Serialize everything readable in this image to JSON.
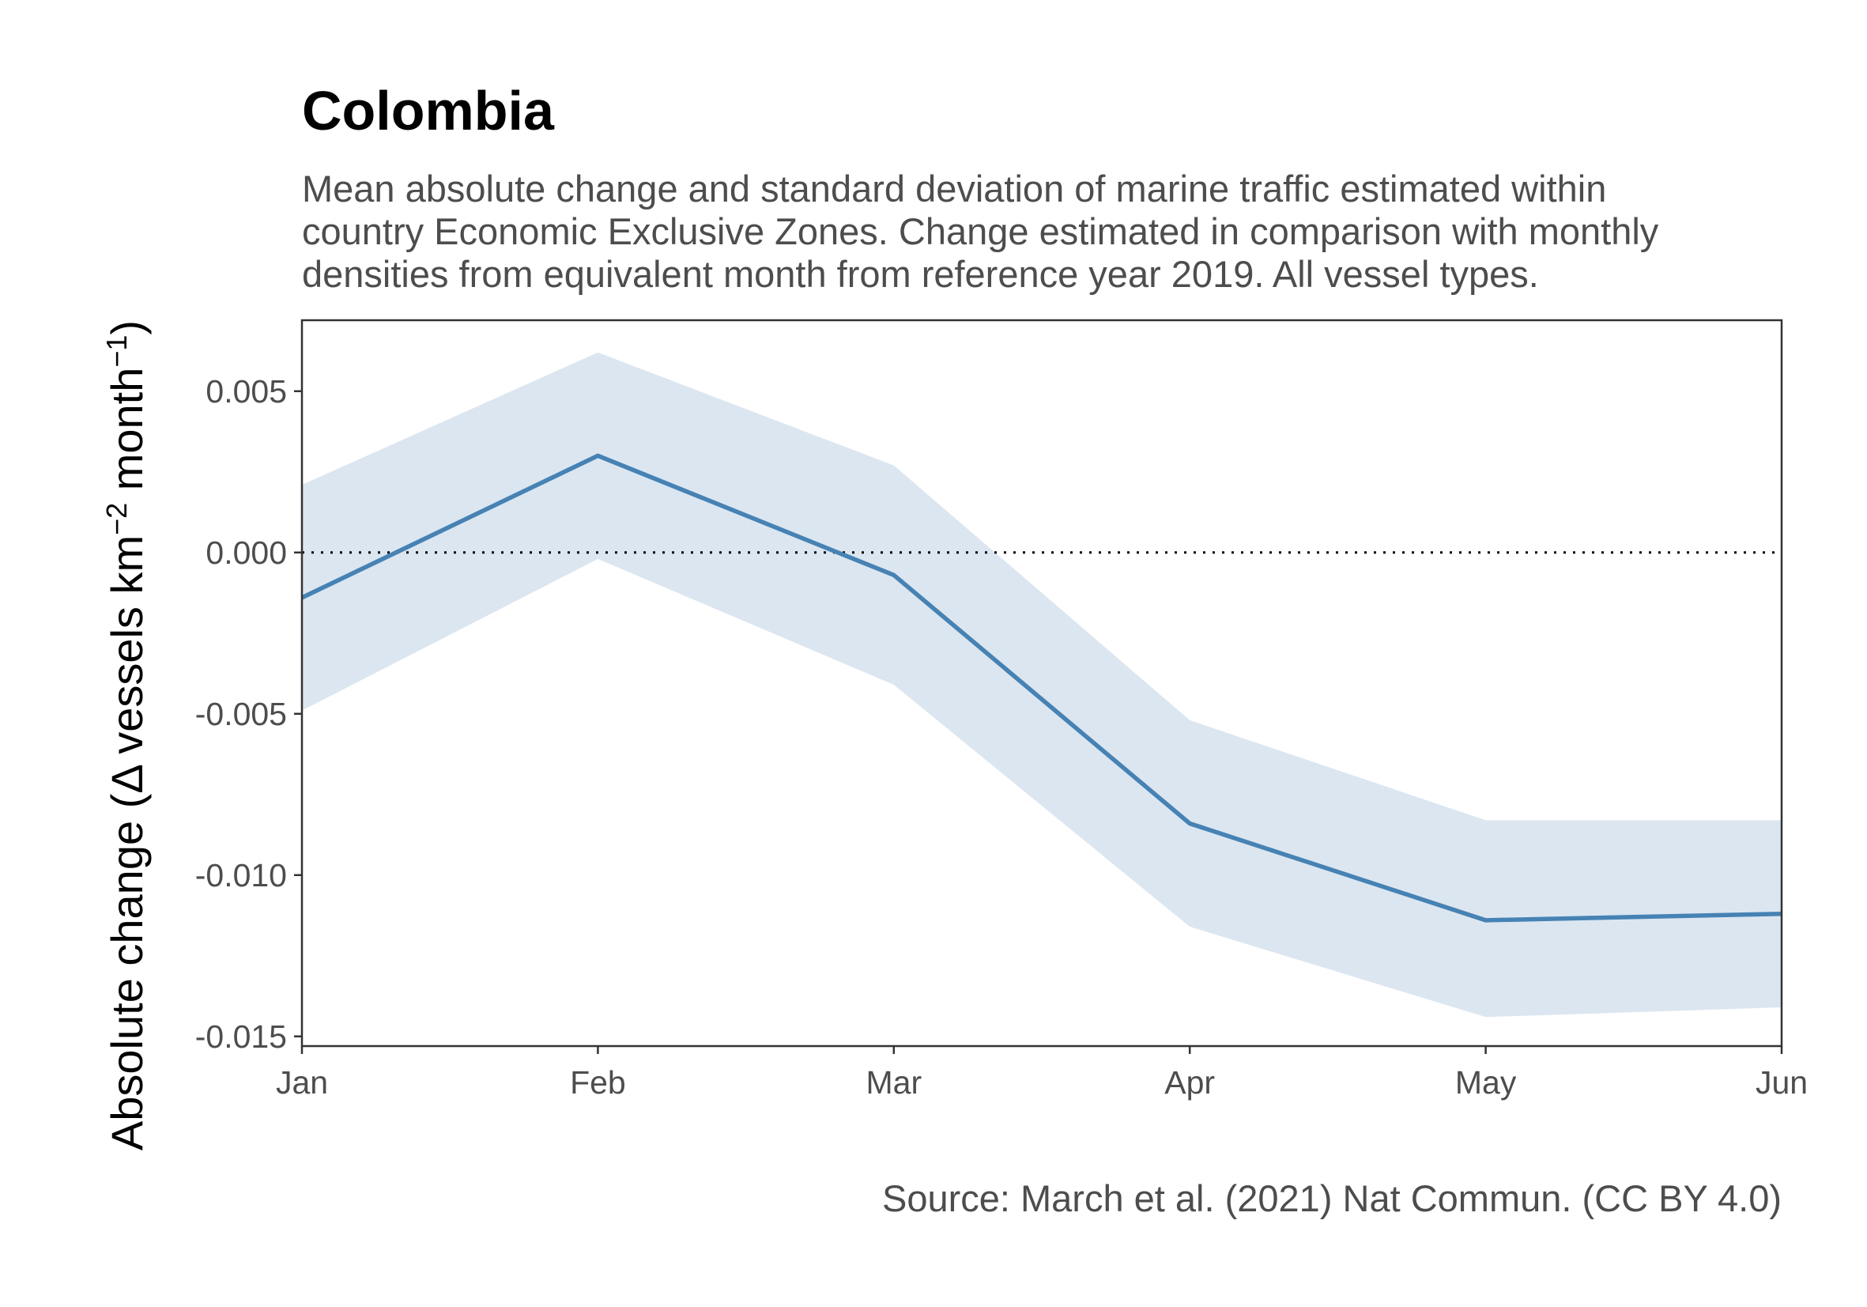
{
  "chart_data": {
    "type": "line",
    "title": "Colombia",
    "subtitle_lines": [
      "Mean absolute change and standard deviation of marine traffic estimated within",
      "country Economic Exclusive Zones. Change estimated in comparison with monthly",
      "densities from equivalent month from reference year 2019. All vessel types."
    ],
    "ylabel_parts": {
      "prefix": "Absolute change (Δ vessels km",
      "exp1": "−2",
      "middle": " month",
      "exp2": "−1",
      "suffix": ")"
    },
    "caption": "Source: March et al. (2021) Nat Commun. (CC BY 4.0)",
    "categories": [
      "Jan",
      "Feb",
      "Mar",
      "Apr",
      "May",
      "Jun"
    ],
    "x": [
      1,
      2,
      3,
      4,
      5,
      6
    ],
    "xlim": [
      1,
      6
    ],
    "y_ticks": [
      0.005,
      0.0,
      -0.005,
      -0.01,
      -0.015
    ],
    "y_tick_labels": [
      "0.005",
      "0.000",
      "-0.005",
      "-0.010",
      "-0.015"
    ],
    "ylim": [
      -0.0153,
      0.0072
    ],
    "reference_line": 0.0,
    "series": [
      {
        "mean": [
          -0.0014,
          0.003,
          -0.0007,
          -0.0084,
          -0.0114,
          -0.0112
        ],
        "upper": [
          0.0021,
          0.0062,
          0.0027,
          -0.0052,
          -0.0083,
          -0.0083
        ],
        "lower": [
          -0.0049,
          -0.0002,
          -0.0041,
          -0.0116,
          -0.0144,
          -0.0141
        ]
      }
    ],
    "grid": false,
    "colors": {
      "line": "#4682b4",
      "band": "#dce6f0",
      "axis": "#333333",
      "reference": "#000000"
    }
  }
}
